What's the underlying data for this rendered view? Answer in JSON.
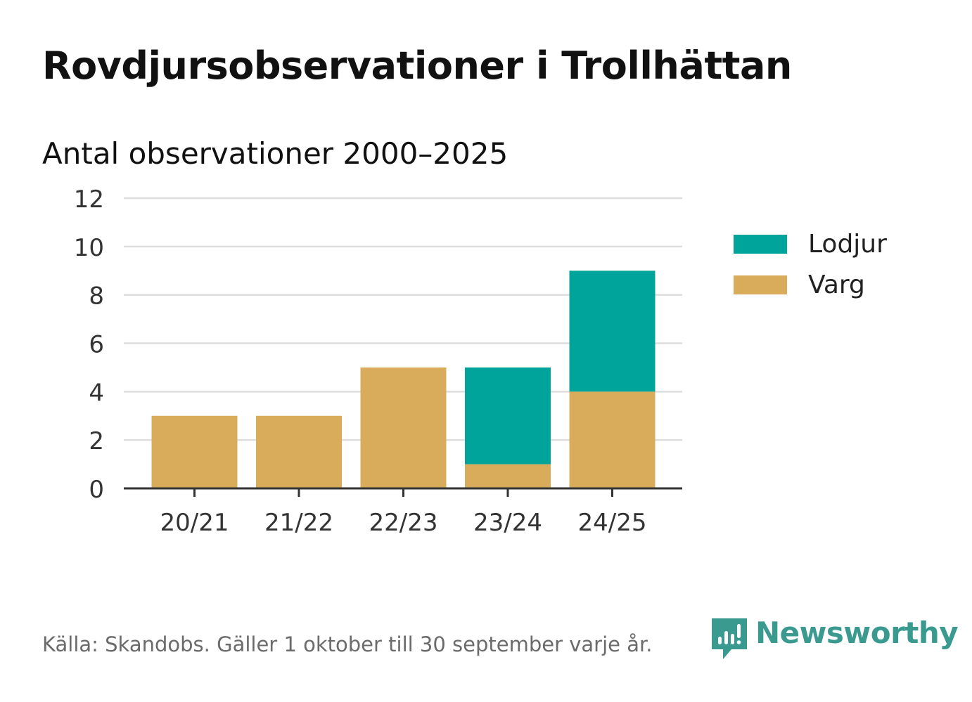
{
  "title": "Rovdjursobservationer i Trollhättan",
  "subtitle": "Antal observationer 2000–2025",
  "source": "Källa: Skandobs. Gäller 1 oktober till 30 september varje år.",
  "brand": {
    "name": "Newsworthy",
    "icon": "newsworthy-chart-bubble-icon",
    "color": "#3a9a8f"
  },
  "colors": {
    "Lodjur": "#00a49a",
    "Varg": "#d9ac5b",
    "grid": "#dddddd",
    "axis": "#333333"
  },
  "chart_data": {
    "type": "bar",
    "stacked": true,
    "title": "Rovdjursobservationer i Trollhättan",
    "subtitle": "Antal observationer 2000–2025",
    "xlabel": "",
    "ylabel": "",
    "categories": [
      "20/21",
      "21/22",
      "22/23",
      "23/24",
      "24/25"
    ],
    "series": [
      {
        "name": "Varg",
        "values": [
          3,
          3,
          5,
          1,
          4
        ]
      },
      {
        "name": "Lodjur",
        "values": [
          0,
          0,
          0,
          4,
          5
        ]
      }
    ],
    "ylim": [
      0,
      12
    ],
    "yticks": [
      "0",
      "2",
      "4",
      "6",
      "8",
      "10",
      "12"
    ],
    "grid": true,
    "legend_position": "right",
    "legend_order": [
      "Lodjur",
      "Varg"
    ]
  }
}
